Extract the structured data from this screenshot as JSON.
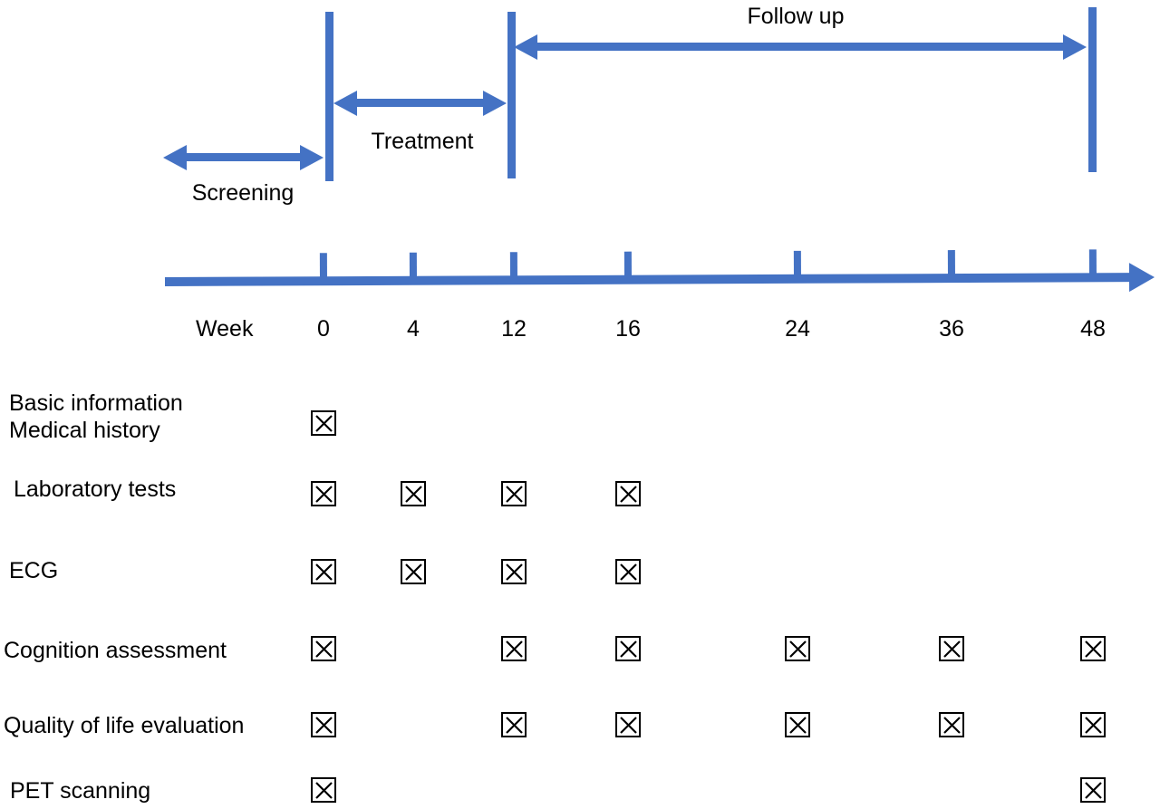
{
  "phases": {
    "screening": {
      "label": "Screening",
      "span": "before week 0"
    },
    "treatment": {
      "label": "Treatment",
      "span": "week 0 to week 12"
    },
    "follow_up": {
      "label": "Follow up",
      "span": "week 12 to week 48"
    }
  },
  "timeline": {
    "axis_label": "Week",
    "weeks": [
      "0",
      "4",
      "12",
      "16",
      "24",
      "36",
      "48"
    ]
  },
  "assessments": [
    {
      "label_lines": [
        "Basic information",
        "Medical history"
      ],
      "checked_weeks": [
        "0"
      ]
    },
    {
      "label_lines": [
        "Laboratory tests"
      ],
      "checked_weeks": [
        "0",
        "4",
        "12",
        "16"
      ]
    },
    {
      "label_lines": [
        "ECG"
      ],
      "checked_weeks": [
        "0",
        "4",
        "12",
        "16"
      ]
    },
    {
      "label_lines": [
        "Cognition assessment"
      ],
      "checked_weeks": [
        "0",
        "12",
        "16",
        "24",
        "36",
        "48"
      ]
    },
    {
      "label_lines": [
        "Quality of life evaluation"
      ],
      "checked_weeks": [
        "0",
        "12",
        "16",
        "24",
        "36",
        "48"
      ]
    },
    {
      "label_lines": [
        "PET scanning"
      ],
      "checked_weeks": [
        "0",
        "48"
      ]
    }
  ],
  "colors": {
    "accent_blue": "#4472C4",
    "text": "#000000",
    "checkbox": "#000000"
  }
}
